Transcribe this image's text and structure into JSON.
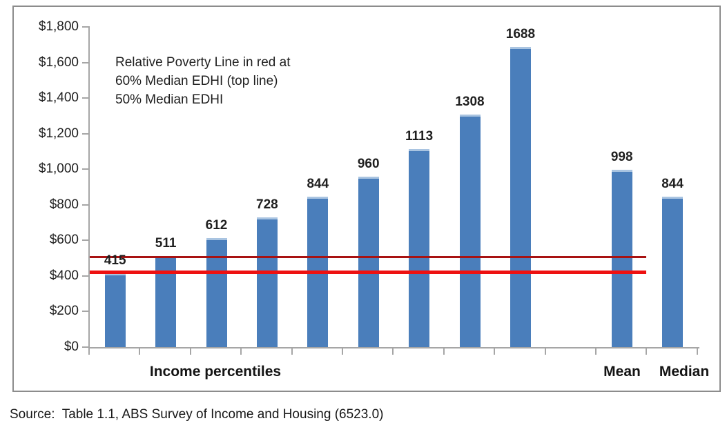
{
  "chart_data": {
    "type": "bar",
    "title": "",
    "percentile_bars": {
      "group_label": "Income percentiles",
      "values": [
        415,
        511,
        612,
        728,
        844,
        960,
        1113,
        1308,
        1688
      ]
    },
    "summary_bars": [
      {
        "label": "Mean",
        "value": 998
      },
      {
        "label": "Median",
        "value": 844
      }
    ],
    "y_axis": {
      "min": 0,
      "max": 1800,
      "tick_step": 200,
      "tick_prefix": "$"
    },
    "reference_lines": [
      {
        "percent_of_median": 60,
        "value": 506,
        "color": "#a81212",
        "thickness": 3,
        "label": "60% Median EDHI (top line)"
      },
      {
        "percent_of_median": 50,
        "value": 422,
        "color": "#ee1111",
        "thickness": 5,
        "label": "50% Median EDHI"
      }
    ],
    "annotation_lines": [
      "Relative Poverty Line in red at",
      "60% Median EDHI (top line)",
      "50% Median EDHI"
    ],
    "grid": false,
    "legend": false,
    "colors": {
      "bar": "#4a7ebb",
      "bar_highlight": "#a9c4e1",
      "axis": "#a6a6a6",
      "text": "#1f1f1f"
    }
  },
  "source_text": "Source:  Table 1.1, ABS Survey of Income and Housing (6523.0)"
}
